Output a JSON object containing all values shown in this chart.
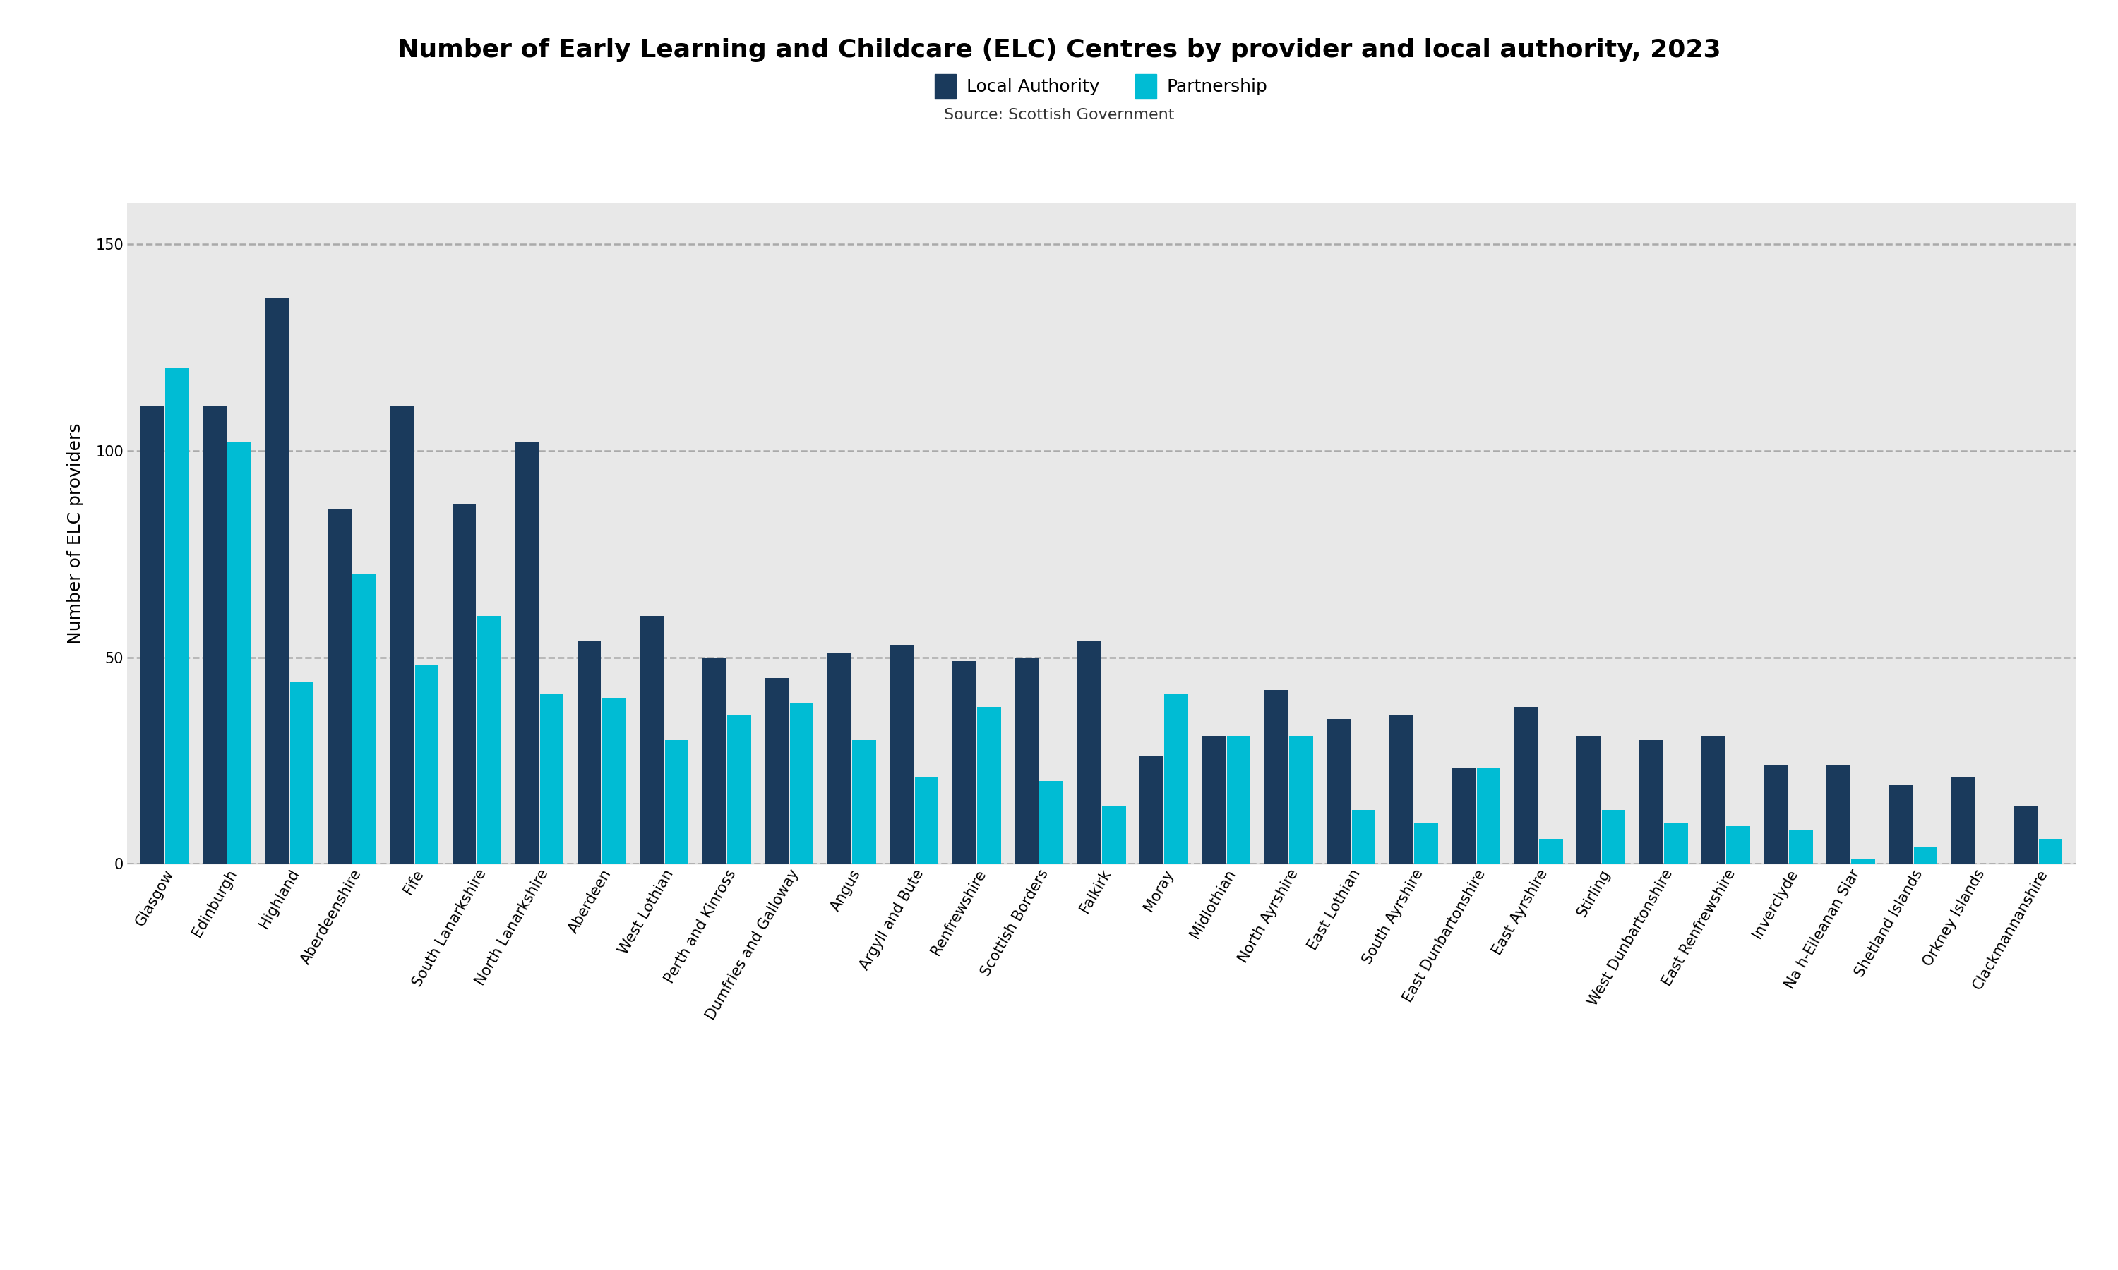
{
  "title": "Number of Early Learning and Childcare (ELC) Centres by provider and local authority, 2023",
  "subtitle": "Source: Scottish Government",
  "ylabel": "Number of ELC providers",
  "local_authority_color": "#1a3a5c",
  "partnership_color": "#00bcd4",
  "background_color": "#e8e8e8",
  "outer_background": "#ffffff",
  "categories": [
    "Glasgow",
    "Edinburgh",
    "Highland",
    "Aberdeenshire",
    "Fife",
    "South Lanarkshire",
    "North Lanarkshire",
    "Aberdeen",
    "West Lothian",
    "Perth and Kinross",
    "Dumfries and Galloway",
    "Angus",
    "Argyll and Bute",
    "Renfrewshire",
    "Scottish Borders",
    "Falkirk",
    "Moray",
    "Midlothian",
    "North Ayrshire",
    "East Lothian",
    "South Ayrshire",
    "East Dunbartonshire",
    "East Ayrshire",
    "Stirling",
    "West Dunbartonshire",
    "East Renfrewshire",
    "Inverclyde",
    "Na h-Eileanan Siar",
    "Shetland Islands",
    "Orkney Islands",
    "Clackmannanshire"
  ],
  "local_authority_values": [
    111,
    111,
    137,
    86,
    111,
    87,
    102,
    54,
    60,
    50,
    45,
    51,
    53,
    49,
    50,
    54,
    26,
    31,
    42,
    35,
    36,
    23,
    38,
    31,
    30,
    31,
    24,
    24,
    19,
    21,
    14
  ],
  "partnership_values": [
    120,
    102,
    44,
    70,
    48,
    60,
    41,
    40,
    30,
    36,
    39,
    30,
    21,
    38,
    20,
    14,
    41,
    31,
    31,
    13,
    10,
    23,
    6,
    13,
    10,
    9,
    8,
    1,
    4,
    0,
    6
  ],
  "ylim": [
    0,
    160
  ],
  "yticks": [
    0,
    50,
    100,
    150
  ],
  "legend_labels": [
    "Local Authority",
    "Partnership"
  ],
  "title_fontsize": 26,
  "subtitle_fontsize": 16,
  "ylabel_fontsize": 18,
  "tick_fontsize": 15,
  "legend_fontsize": 18
}
